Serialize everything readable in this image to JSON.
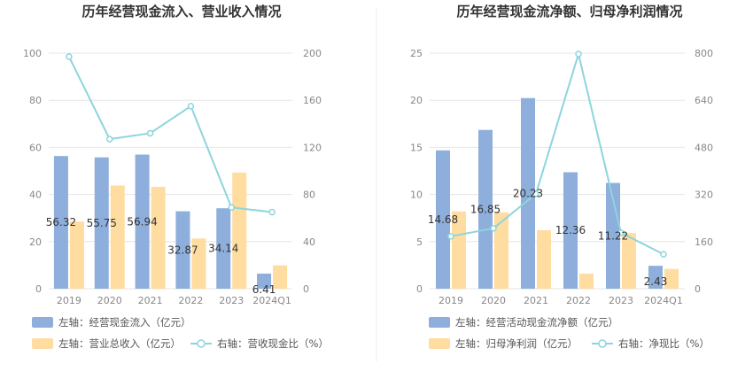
{
  "colors": {
    "bar_primary": "#8eaedb",
    "bar_secondary": "#ffdca0",
    "line": "#8dd5dc",
    "grid": "#e6e6e6",
    "divider": "#eeeeee"
  },
  "chart_data": [
    {
      "type": "bar",
      "title": "历年经营现金流入、营业收入情况",
      "categories": [
        "2019",
        "2020",
        "2021",
        "2022",
        "2023",
        "2024Q1"
      ],
      "left_axis": {
        "ticks": [
          "0",
          "20",
          "40",
          "60",
          "80",
          "100"
        ],
        "ylim": [
          0,
          100
        ]
      },
      "right_axis": {
        "ticks": [
          "0",
          "40",
          "80",
          "120",
          "160",
          "200"
        ],
        "ylim": [
          0,
          200
        ]
      },
      "series": [
        {
          "name": "左轴：经营现金流入（亿元）",
          "axis": "left",
          "kind": "bar",
          "values": [
            56.32,
            55.75,
            56.94,
            32.87,
            34.14,
            6.41
          ],
          "labels": [
            "56.32",
            "55.75",
            "56.94",
            "32.87",
            "34.14",
            "6.41"
          ]
        },
        {
          "name": "左轴：营业总收入（亿元）",
          "axis": "left",
          "kind": "bar",
          "values": [
            28.5,
            43.8,
            43.2,
            21.3,
            49.3,
            9.9
          ]
        },
        {
          "name": "右轴：营收现金比（%）",
          "axis": "right",
          "kind": "line",
          "values": [
            197,
            127,
            132,
            155,
            69,
            65
          ]
        }
      ],
      "legend_placement": "bottom",
      "grid": true
    },
    {
      "type": "bar",
      "title": "历年经营现金流净额、归母净利润情况",
      "categories": [
        "2019",
        "2020",
        "2021",
        "2022",
        "2023",
        "2024Q1"
      ],
      "left_axis": {
        "ticks": [
          "0",
          "5",
          "10",
          "15",
          "20",
          "25"
        ],
        "ylim": [
          0,
          25
        ]
      },
      "right_axis": {
        "ticks": [
          "0",
          "160",
          "320",
          "480",
          "640",
          "800"
        ],
        "ylim": [
          0,
          800
        ]
      },
      "series": [
        {
          "name": "左轴：经营活动现金流净额（亿元）",
          "axis": "left",
          "kind": "bar",
          "values": [
            14.68,
            16.85,
            20.23,
            12.36,
            11.22,
            2.43
          ],
          "labels": [
            "14.68",
            "16.85",
            "20.23",
            "12.36",
            "11.22",
            "2.43"
          ]
        },
        {
          "name": "左轴：归母净利润（亿元）",
          "axis": "left",
          "kind": "bar",
          "values": [
            8.2,
            8.1,
            6.2,
            1.6,
            5.9,
            2.1
          ]
        },
        {
          "name": "右轴：净现比（%）",
          "axis": "right",
          "kind": "line",
          "values": [
            178,
            205,
            322,
            797,
            190,
            117
          ]
        }
      ],
      "legend_placement": "bottom",
      "grid": true
    }
  ]
}
